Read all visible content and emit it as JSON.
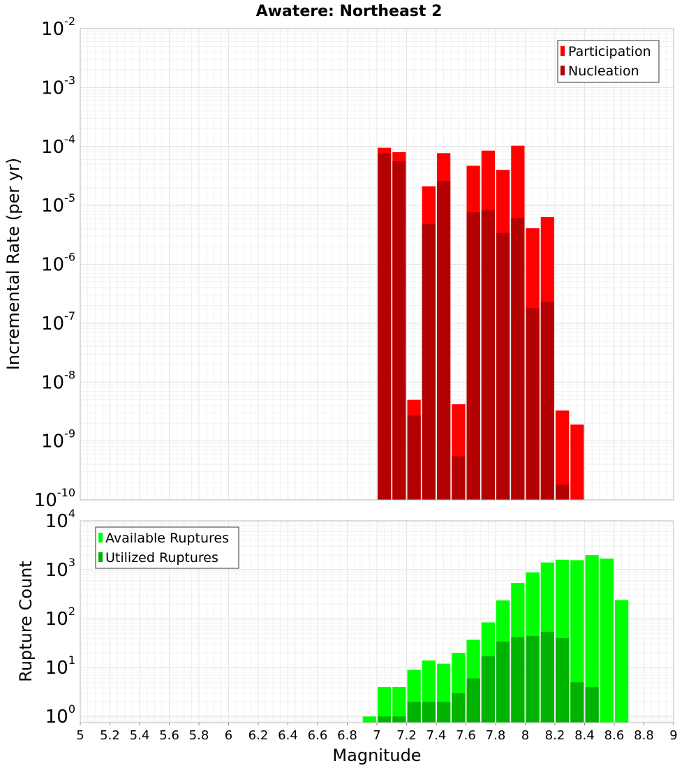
{
  "title": "Awatere: Northeast 2",
  "chart_data": [
    {
      "type": "bar",
      "log_scale_y": true,
      "ylabel": "Incremental Rate (per yr)",
      "ylim": [
        1e-10,
        0.01
      ],
      "xlim": [
        5,
        9
      ],
      "grid": true,
      "legend_position": "top-right",
      "colors": {
        "Participation": "#ff0000",
        "Nucleation": "#b30000"
      },
      "series": [
        {
          "name": "Participation",
          "x": [
            7.05,
            7.15,
            7.25,
            7.35,
            7.45,
            7.55,
            7.65,
            7.75,
            7.85,
            7.95,
            8.05,
            8.15,
            8.25,
            8.35
          ],
          "values": [
            9.5e-05,
            8e-05,
            5e-09,
            2.1e-05,
            7.7e-05,
            4.2e-09,
            4.7e-05,
            8.5e-05,
            4e-05,
            0.000103,
            4.1e-06,
            6.3e-06,
            3.3e-09,
            1.9e-09
          ]
        },
        {
          "name": "Nucleation",
          "x": [
            7.05,
            7.15,
            7.25,
            7.35,
            7.45,
            7.55,
            7.65,
            7.75,
            7.85,
            7.95,
            8.05,
            8.15,
            8.25
          ],
          "values": [
            7.6e-05,
            5.6e-05,
            2.7e-09,
            4.8e-06,
            2.6e-05,
            5.5e-10,
            7.6e-06,
            8.2e-06,
            3.4e-06,
            6.1e-06,
            1.8e-07,
            2.3e-07,
            1.8e-10
          ]
        }
      ]
    },
    {
      "type": "bar",
      "log_scale_y": true,
      "xlabel": "Magnitude",
      "ylabel": "Rupture Count",
      "ylim": [
        0.75,
        10000
      ],
      "xlim": [
        5,
        9
      ],
      "grid": true,
      "legend_position": "top-left",
      "x_ticks": [
        "5",
        "5.2",
        "5.4",
        "5.6",
        "5.8",
        "6",
        "6.2",
        "6.4",
        "6.6",
        "6.8",
        "7",
        "7.2",
        "7.4",
        "7.6",
        "7.8",
        "8",
        "8.2",
        "8.4",
        "8.6",
        "8.8",
        "9"
      ],
      "colors": {
        "Available Ruptures": "#00ff00",
        "Utilized Ruptures": "#00b300"
      },
      "series": [
        {
          "name": "Available Ruptures",
          "x": [
            6.95,
            7.05,
            7.15,
            7.25,
            7.35,
            7.45,
            7.55,
            7.65,
            7.75,
            7.85,
            7.95,
            8.05,
            8.15,
            8.25,
            8.35,
            8.45,
            8.55,
            8.65
          ],
          "values": [
            1,
            4,
            4,
            9,
            14,
            12,
            20,
            37,
            84,
            236,
            537,
            885,
            1410,
            1600,
            1570,
            1990,
            1690,
            240
          ]
        },
        {
          "name": "Utilized Ruptures",
          "x": [
            7.05,
            7.15,
            7.25,
            7.35,
            7.45,
            7.55,
            7.65,
            7.75,
            7.85,
            7.95,
            8.05,
            8.15,
            8.25,
            8.35,
            8.45
          ],
          "values": [
            1,
            1,
            2,
            2,
            2,
            3,
            6,
            17,
            34,
            42,
            44,
            54,
            40,
            5,
            4
          ]
        }
      ]
    }
  ]
}
